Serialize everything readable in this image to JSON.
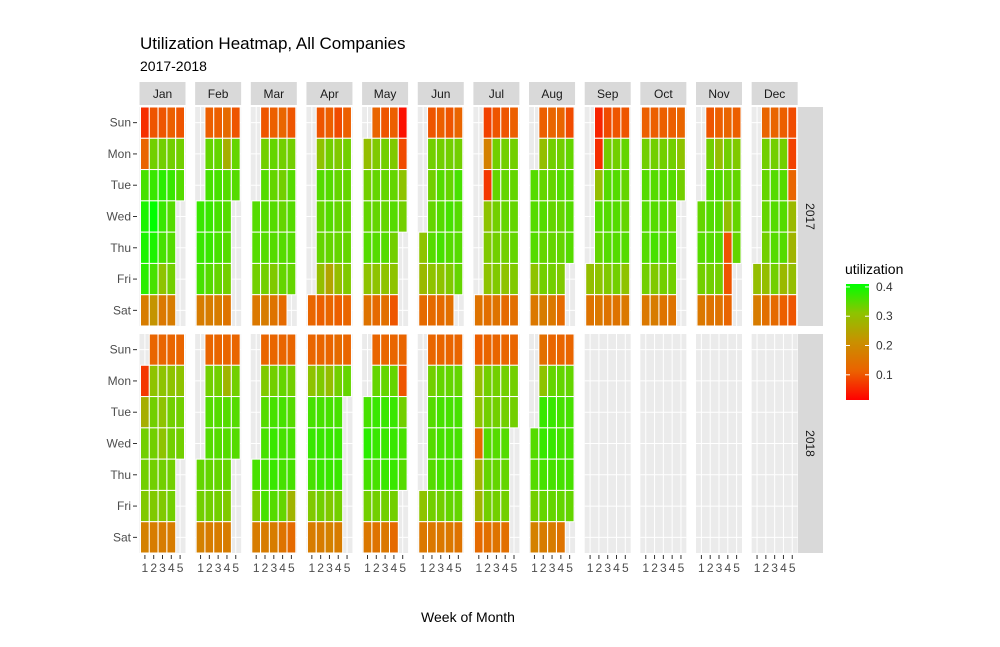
{
  "chart_data": {
    "type": "heatmap",
    "title": "Utilization Heatmap, All Companies",
    "subtitle": "2017-2018",
    "xlabel": "Week of Month",
    "ylabel": "",
    "x_ticks": [
      "1",
      "2",
      "3",
      "4",
      "5"
    ],
    "y_categories": [
      "Sun",
      "Mon",
      "Tue",
      "Wed",
      "Thu",
      "Fri",
      "Sat"
    ],
    "months": [
      "Jan",
      "Feb",
      "Mar",
      "Apr",
      "May",
      "Jun",
      "Jul",
      "Aug",
      "Sep",
      "Oct",
      "Nov",
      "Dec"
    ],
    "years": [
      "2017",
      "2018"
    ],
    "legend": {
      "title": "utilization",
      "ticks": [
        "0.1",
        "0.2",
        "0.3",
        "0.4"
      ],
      "tick_values": [
        0.1,
        0.2,
        0.3,
        0.4
      ],
      "range": [
        0.014,
        0.41
      ],
      "low_color": "#FF0000",
      "high_color": "#00FF00",
      "placement": "right"
    },
    "grid": true,
    "values": {
      "2017": {
        "Jan": [
          [
            0.06,
            0.1,
            0.1,
            0.11,
            0.1
          ],
          [
            0.12,
            0.33,
            0.33,
            0.33,
            0.33
          ],
          [
            0.36,
            0.37,
            0.38,
            0.37,
            0.35
          ],
          [
            0.39,
            0.41,
            0.37,
            0.35,
            null
          ],
          [
            0.39,
            0.39,
            0.36,
            0.35,
            null
          ],
          [
            0.38,
            0.36,
            0.31,
            0.33,
            null
          ],
          [
            0.17,
            0.22,
            0.16,
            0.17,
            null
          ]
        ],
        "Feb": [
          [
            null,
            0.11,
            0.11,
            0.13,
            0.1
          ],
          [
            null,
            0.34,
            0.34,
            0.27,
            0.34
          ],
          [
            null,
            0.36,
            0.36,
            0.35,
            0.35
          ],
          [
            0.37,
            0.37,
            0.36,
            0.35,
            null
          ],
          [
            0.37,
            0.37,
            0.36,
            0.35,
            null
          ],
          [
            0.36,
            0.35,
            0.34,
            0.33,
            null
          ],
          [
            0.17,
            0.17,
            0.17,
            0.15,
            null
          ]
        ],
        "Mar": [
          [
            null,
            0.1,
            0.11,
            0.12,
            0.1
          ],
          [
            null,
            0.33,
            0.34,
            0.33,
            0.33
          ],
          [
            null,
            0.35,
            0.34,
            0.33,
            0.35
          ],
          [
            0.35,
            0.35,
            0.35,
            0.34,
            0.35
          ],
          [
            0.35,
            0.35,
            0.35,
            0.35,
            0.35
          ],
          [
            0.33,
            0.33,
            0.32,
            0.34,
            0.34
          ],
          [
            0.16,
            0.17,
            0.15,
            0.13,
            null
          ]
        ],
        "Apr": [
          [
            null,
            0.1,
            0.11,
            0.09,
            0.11
          ],
          [
            null,
            0.31,
            0.33,
            0.32,
            0.33
          ],
          [
            null,
            0.35,
            0.35,
            0.34,
            0.34
          ],
          [
            null,
            0.34,
            0.35,
            0.34,
            0.34
          ],
          [
            null,
            0.34,
            0.34,
            0.34,
            0.34
          ],
          [
            null,
            0.3,
            0.25,
            0.3,
            0.32
          ],
          [
            0.12,
            0.11,
            0.12,
            0.11,
            0.12
          ]
        ],
        "May": [
          [
            null,
            0.12,
            0.1,
            0.11,
            0.03
          ],
          [
            0.3,
            0.32,
            0.33,
            0.32,
            0.09
          ],
          [
            0.33,
            0.34,
            0.34,
            0.34,
            0.31
          ],
          [
            0.34,
            0.34,
            0.34,
            0.35,
            0.33
          ],
          [
            0.35,
            0.35,
            0.35,
            0.33,
            null
          ],
          [
            0.31,
            0.31,
            0.31,
            0.31,
            null
          ],
          [
            0.15,
            0.13,
            0.14,
            0.1,
            null
          ]
        ],
        "Jun": [
          [
            null,
            0.1,
            0.11,
            0.1,
            0.12
          ],
          [
            null,
            0.33,
            0.33,
            0.33,
            0.33
          ],
          [
            null,
            0.33,
            0.35,
            0.34,
            0.36
          ],
          [
            null,
            0.34,
            0.35,
            0.36,
            0.35
          ],
          [
            0.31,
            0.35,
            0.36,
            0.35,
            0.35
          ],
          [
            0.29,
            0.31,
            0.31,
            0.32,
            0.34
          ],
          [
            0.13,
            0.13,
            0.13,
            0.14,
            null
          ]
        ],
        "Jul": [
          [
            null,
            0.08,
            0.1,
            0.1,
            0.11
          ],
          [
            null,
            0.18,
            0.33,
            0.33,
            0.33
          ],
          [
            null,
            0.07,
            0.34,
            0.34,
            0.34
          ],
          [
            null,
            0.31,
            0.33,
            0.34,
            0.34
          ],
          [
            null,
            0.32,
            0.33,
            0.33,
            0.34
          ],
          [
            null,
            0.31,
            0.32,
            0.31,
            0.32
          ],
          [
            0.15,
            0.14,
            0.15,
            0.13,
            0.14
          ]
        ],
        "Aug": [
          [
            null,
            0.11,
            0.12,
            0.12,
            0.09
          ],
          [
            null,
            0.3,
            0.33,
            0.33,
            0.34
          ],
          [
            0.35,
            0.34,
            0.34,
            0.35,
            0.35
          ],
          [
            0.35,
            0.35,
            0.34,
            0.34,
            0.35
          ],
          [
            0.35,
            0.34,
            0.34,
            0.34,
            0.35
          ],
          [
            0.31,
            0.33,
            0.33,
            0.32,
            null
          ],
          [
            0.16,
            0.17,
            0.16,
            0.13,
            null
          ]
        ],
        "Sep": [
          [
            null,
            0.05,
            0.09,
            0.1,
            0.1
          ],
          [
            null,
            0.06,
            0.33,
            0.33,
            0.34
          ],
          [
            null,
            0.3,
            0.35,
            0.35,
            0.34
          ],
          [
            null,
            0.35,
            0.35,
            0.35,
            0.34
          ],
          [
            null,
            0.34,
            0.35,
            0.35,
            0.35
          ],
          [
            0.3,
            0.31,
            0.32,
            0.33,
            0.31
          ],
          [
            0.15,
            0.16,
            0.15,
            0.15,
            0.16
          ]
        ],
        "Oct": [
          [
            0.11,
            0.11,
            0.11,
            0.11,
            0.12
          ],
          [
            0.33,
            0.33,
            0.33,
            0.33,
            0.31
          ],
          [
            0.35,
            0.35,
            0.35,
            0.35,
            0.33
          ],
          [
            0.35,
            0.35,
            0.35,
            0.34,
            null
          ],
          [
            0.35,
            0.36,
            0.35,
            0.35,
            null
          ],
          [
            0.33,
            0.32,
            0.33,
            0.33,
            null
          ],
          [
            0.16,
            0.17,
            0.15,
            0.15,
            null
          ]
        ],
        "Nov": [
          [
            null,
            0.1,
            0.11,
            0.12,
            0.11
          ],
          [
            null,
            0.33,
            0.3,
            0.33,
            0.32
          ],
          [
            null,
            0.35,
            0.35,
            0.34,
            0.34
          ],
          [
            0.34,
            0.35,
            0.35,
            0.3,
            0.34
          ],
          [
            0.35,
            0.35,
            0.35,
            0.1,
            0.34
          ],
          [
            0.33,
            0.33,
            0.33,
            0.1,
            null
          ],
          [
            0.16,
            0.15,
            0.15,
            0.12,
            null
          ]
        ],
        "Dec": [
          [
            null,
            0.12,
            0.12,
            0.11,
            0.09
          ],
          [
            null,
            0.33,
            0.33,
            0.33,
            0.08
          ],
          [
            null,
            0.34,
            0.35,
            0.35,
            0.12
          ],
          [
            null,
            0.34,
            0.35,
            0.35,
            0.29
          ],
          [
            null,
            0.33,
            0.35,
            0.35,
            0.28
          ],
          [
            0.3,
            0.3,
            0.33,
            0.29,
            0.3
          ],
          [
            0.17,
            0.14,
            0.13,
            0.11,
            0.1
          ]
        ]
      },
      "2018": {
        "Jan": [
          [
            null,
            0.12,
            0.12,
            0.12,
            0.12
          ],
          [
            0.07,
            0.31,
            0.31,
            0.31,
            0.31
          ],
          [
            0.27,
            0.33,
            0.31,
            0.33,
            0.33
          ],
          [
            0.33,
            0.33,
            0.31,
            0.33,
            0.33
          ],
          [
            0.33,
            0.33,
            0.33,
            0.33,
            null
          ],
          [
            0.32,
            0.32,
            0.32,
            0.33,
            null
          ],
          [
            0.18,
            0.17,
            0.17,
            0.17,
            null
          ]
        ],
        "Feb": [
          [
            null,
            0.12,
            0.12,
            0.12,
            0.12
          ],
          [
            null,
            0.33,
            0.33,
            0.28,
            0.33
          ],
          [
            null,
            0.35,
            0.35,
            0.35,
            0.35
          ],
          [
            null,
            0.35,
            0.35,
            0.35,
            0.35
          ],
          [
            0.34,
            0.34,
            0.34,
            0.34,
            null
          ],
          [
            0.33,
            0.33,
            0.33,
            0.32,
            null
          ],
          [
            0.18,
            0.17,
            0.17,
            0.17,
            null
          ]
        ],
        "Mar": [
          [
            null,
            0.12,
            0.12,
            0.12,
            0.12
          ],
          [
            null,
            0.32,
            0.33,
            0.34,
            0.33
          ],
          [
            null,
            0.35,
            0.36,
            0.36,
            0.35
          ],
          [
            null,
            0.36,
            0.37,
            0.36,
            0.36
          ],
          [
            0.36,
            0.36,
            0.37,
            0.36,
            0.36
          ],
          [
            0.32,
            0.36,
            0.35,
            0.34,
            0.28
          ],
          [
            0.17,
            0.17,
            0.17,
            0.15,
            0.13
          ]
        ],
        "Apr": [
          [
            0.12,
            0.12,
            0.12,
            0.13,
            0.12
          ],
          [
            0.31,
            0.32,
            0.3,
            0.33,
            0.34
          ],
          [
            0.36,
            0.36,
            0.36,
            0.36,
            null
          ],
          [
            0.37,
            0.37,
            0.37,
            0.37,
            null
          ],
          [
            0.36,
            0.37,
            0.37,
            0.37,
            null
          ],
          [
            0.32,
            0.33,
            0.32,
            0.33,
            null
          ],
          [
            0.17,
            0.17,
            0.18,
            0.17,
            null
          ]
        ],
        "May": [
          [
            null,
            0.12,
            0.12,
            0.12,
            0.12
          ],
          [
            null,
            0.34,
            0.34,
            0.34,
            0.1
          ],
          [
            0.36,
            0.37,
            0.37,
            0.37,
            0.33
          ],
          [
            0.38,
            0.37,
            0.37,
            0.37,
            0.36
          ],
          [
            0.36,
            0.36,
            0.37,
            0.37,
            0.35
          ],
          [
            0.33,
            0.33,
            0.33,
            0.33,
            null
          ],
          [
            0.16,
            0.15,
            0.16,
            0.13,
            null
          ]
        ],
        "Jun": [
          [
            null,
            0.12,
            0.12,
            0.12,
            0.12
          ],
          [
            null,
            0.33,
            0.34,
            0.34,
            0.34
          ],
          [
            null,
            0.35,
            0.36,
            0.36,
            0.36
          ],
          [
            null,
            0.35,
            0.36,
            0.36,
            0.36
          ],
          [
            null,
            0.35,
            0.36,
            0.36,
            0.36
          ],
          [
            0.31,
            0.33,
            0.33,
            0.34,
            0.34
          ],
          [
            0.16,
            0.16,
            0.16,
            0.16,
            0.15
          ]
        ],
        "Jul": [
          [
            0.11,
            0.12,
            0.12,
            0.12,
            0.12
          ],
          [
            0.3,
            0.33,
            0.33,
            0.33,
            0.33
          ],
          [
            0.31,
            0.33,
            0.33,
            0.33,
            0.33
          ],
          [
            0.13,
            0.35,
            0.35,
            0.35,
            null
          ],
          [
            0.28,
            0.34,
            0.34,
            0.34,
            null
          ],
          [
            0.28,
            0.33,
            0.33,
            0.33,
            null
          ],
          [
            0.13,
            0.14,
            0.15,
            0.14,
            null
          ]
        ],
        "Aug": [
          [
            null,
            0.14,
            0.12,
            0.12,
            0.12
          ],
          [
            null,
            0.31,
            0.34,
            0.34,
            0.34
          ],
          [
            null,
            0.37,
            0.37,
            0.36,
            0.36
          ],
          [
            0.35,
            0.37,
            0.37,
            0.36,
            0.36
          ],
          [
            0.35,
            0.36,
            0.36,
            0.36,
            0.36
          ],
          [
            0.33,
            0.34,
            0.34,
            0.34,
            0.34
          ],
          [
            0.18,
            0.17,
            0.17,
            0.15,
            null
          ]
        ]
      }
    }
  }
}
